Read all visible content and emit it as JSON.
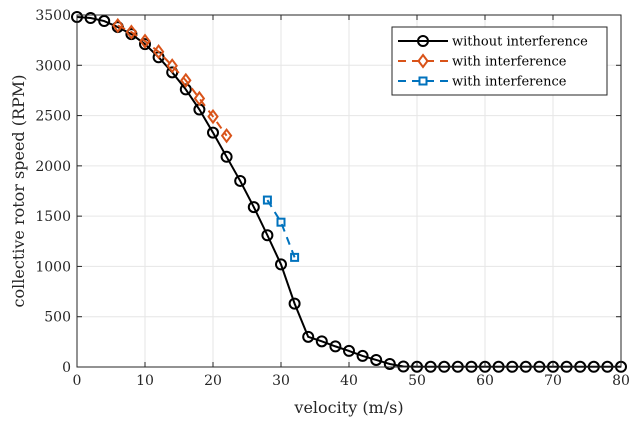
{
  "chart_data": {
    "type": "line",
    "xlabel": "velocity (m/s)",
    "ylabel": "collective rotor speed (RPM)",
    "xlim": [
      0,
      80
    ],
    "ylim": [
      0,
      3500
    ],
    "xticks": [
      0,
      10,
      20,
      30,
      40,
      50,
      60,
      70,
      80
    ],
    "yticks": [
      0,
      500,
      1000,
      1500,
      2000,
      2500,
      3000,
      3500
    ],
    "grid": true,
    "legend_position": "top-right",
    "series": [
      {
        "name": "without interference",
        "color": "#000000",
        "marker": "circle",
        "line_style": "solid",
        "x": [
          0,
          2,
          4,
          6,
          8,
          10,
          12,
          14,
          16,
          18,
          20,
          22,
          24,
          26,
          28,
          30,
          32,
          34,
          36,
          38,
          40,
          42,
          44,
          46,
          48,
          50,
          52,
          54,
          56,
          58,
          60,
          62,
          64,
          66,
          68,
          70,
          72,
          74,
          76,
          78,
          80
        ],
        "y": [
          3480,
          3470,
          3440,
          3380,
          3310,
          3210,
          3080,
          2930,
          2760,
          2560,
          2330,
          2090,
          1850,
          1590,
          1310,
          1020,
          630,
          300,
          255,
          205,
          160,
          110,
          70,
          30,
          5,
          3,
          2,
          2,
          2,
          2,
          2,
          2,
          2,
          2,
          2,
          2,
          2,
          2,
          2,
          2,
          2
        ]
      },
      {
        "name": "with interference",
        "color": "#D95319",
        "marker": "diamond",
        "line_style": "dashed",
        "x": [
          6,
          8,
          10,
          12,
          14,
          16,
          18,
          20,
          22
        ],
        "y": [
          3395,
          3330,
          3240,
          3135,
          2995,
          2850,
          2670,
          2490,
          2300
        ]
      },
      {
        "name": "with interference",
        "color": "#0072BD",
        "marker": "square",
        "line_style": "dashed",
        "x": [
          28,
          30,
          32
        ],
        "y": [
          1660,
          1440,
          1090
        ]
      }
    ]
  }
}
